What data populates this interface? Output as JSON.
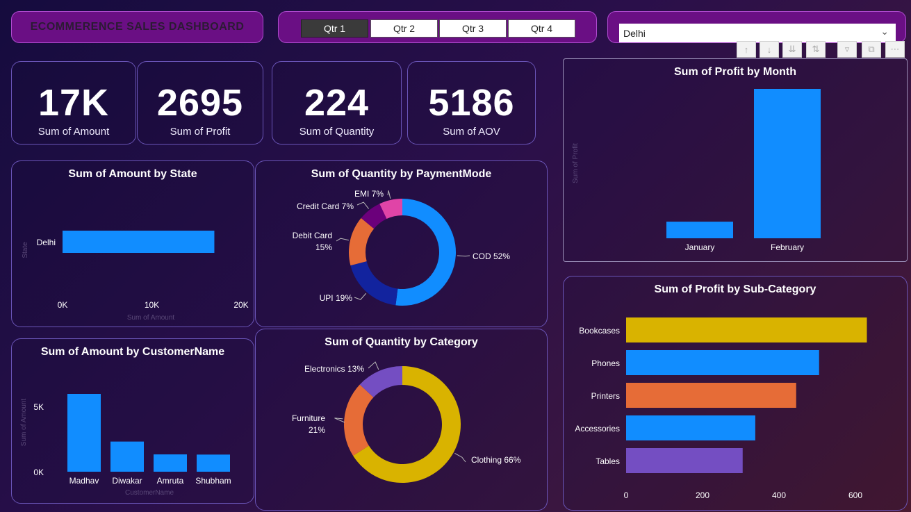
{
  "dashboard": {
    "title": "ECOMMERENCE SALES DASHBOARD",
    "quarters": [
      "Qtr 1",
      "Qtr 2",
      "Qtr 3",
      "Qtr 4"
    ],
    "active_quarter": "Qtr 1",
    "state_filter": {
      "selected": "Delhi"
    }
  },
  "kpis": [
    {
      "value": "17K",
      "label": "Sum of Amount"
    },
    {
      "value": "2695",
      "label": "Sum of Profit"
    },
    {
      "value": "224",
      "label": "Sum of Quantity"
    },
    {
      "value": "5186",
      "label": "Sum of AOV"
    }
  ],
  "colors": {
    "blue": "#118dff",
    "orange": "#e66c37",
    "purple": "#744ec2",
    "gold": "#d9b300",
    "darkblue": "#12239e",
    "magenta": "#e044a7",
    "darkpurple": "#6b007b"
  },
  "chart_data": [
    {
      "id": "amount_by_state",
      "type": "bar",
      "orientation": "horizontal",
      "title": "Sum of Amount by State",
      "xlabel": "Sum of Amount",
      "ylabel": "State",
      "categories": [
        "Delhi"
      ],
      "values": [
        17000
      ],
      "xlim": [
        0,
        20000
      ],
      "ticks": [
        "0K",
        "10K",
        "20K"
      ]
    },
    {
      "id": "quantity_by_paymentmode",
      "type": "pie",
      "variant": "donut",
      "title": "Sum of Quantity by PaymentMode",
      "slices": [
        {
          "label": "COD",
          "percent": 52,
          "text": "COD 52%",
          "color": "#118dff"
        },
        {
          "label": "UPI",
          "percent": 19,
          "text": "UPI 19%",
          "color": "#12239e"
        },
        {
          "label": "Debit Card",
          "percent": 15,
          "text": "Debit Card",
          "text2": "15%",
          "color": "#e66c37"
        },
        {
          "label": "Credit Card",
          "percent": 7,
          "text": "Credit Card 7%",
          "color": "#6b007b"
        },
        {
          "label": "EMI",
          "percent": 7,
          "text": "EMI 7%",
          "color": "#e044a7"
        }
      ]
    },
    {
      "id": "profit_by_month",
      "type": "bar",
      "title": "Sum of Profit by Month",
      "ylabel": "Sum of Profit",
      "categories": [
        "January",
        "February"
      ],
      "values": [
        270,
        2425
      ]
    },
    {
      "id": "amount_by_customer",
      "type": "bar",
      "title": "Sum of Amount by CustomerName",
      "xlabel": "CustomerName",
      "ylabel": "Sum of Amount",
      "categories": [
        "Madhav",
        "Diwakar",
        "Amruta",
        "Shubham"
      ],
      "values": [
        8000,
        3100,
        1780,
        1760
      ],
      "ylim": [
        0,
        8000
      ],
      "ticks": [
        "0K",
        "5K"
      ]
    },
    {
      "id": "quantity_by_category",
      "type": "pie",
      "variant": "donut",
      "title": "Sum of Quantity by Category",
      "slices": [
        {
          "label": "Clothing",
          "percent": 66,
          "text": "Clothing 66%",
          "color": "#d9b300"
        },
        {
          "label": "Furniture",
          "percent": 21,
          "text": "Furniture",
          "text2": "21%",
          "color": "#e66c37"
        },
        {
          "label": "Electronics",
          "percent": 13,
          "text": "Electronics 13%",
          "color": "#744ec2"
        }
      ]
    },
    {
      "id": "profit_by_subcategory",
      "type": "bar",
      "orientation": "horizontal",
      "title": "Sum of Profit by Sub-Category",
      "categories": [
        "Bookcases",
        "Phones",
        "Printers",
        "Accessories",
        "Tables"
      ],
      "values": [
        630,
        505,
        445,
        338,
        305
      ],
      "colors": [
        "#d9b300",
        "#118dff",
        "#e66c37",
        "#118dff",
        "#744ec2"
      ],
      "xlim": [
        0,
        700
      ],
      "ticks": [
        "0",
        "200",
        "400",
        "600"
      ]
    }
  ]
}
